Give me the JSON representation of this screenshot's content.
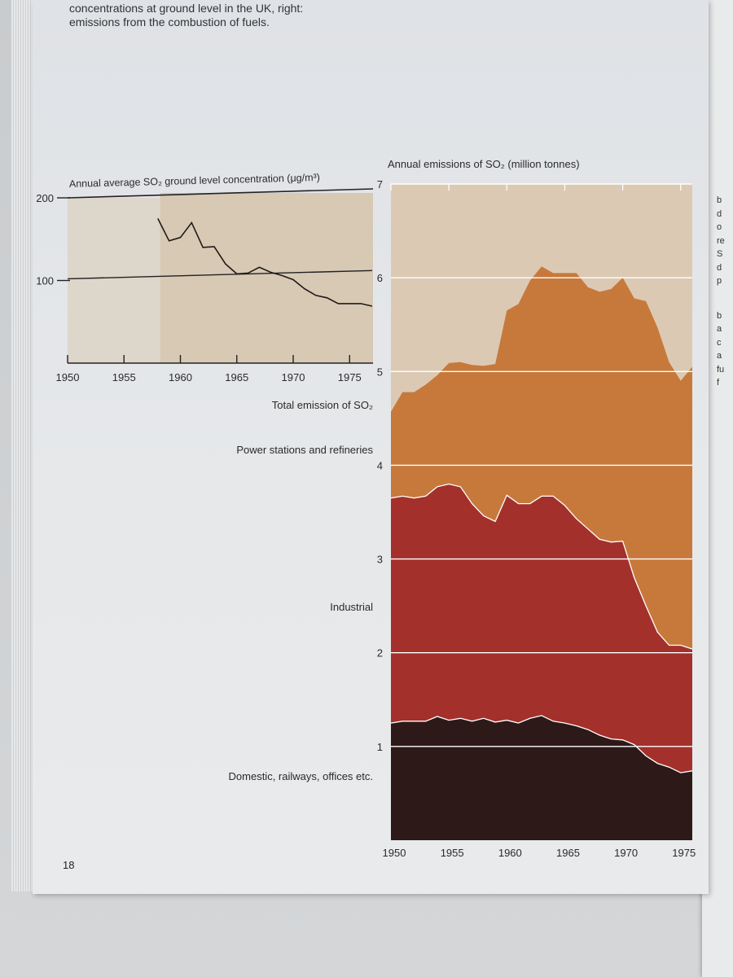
{
  "caption": {
    "line1": "concentrations at ground level in the UK, right:",
    "line2": "emissions from the combustion of fuels."
  },
  "page_number": "18",
  "edge_letters": [
    "b",
    "d",
    "o",
    "re",
    "S",
    "d",
    "p",
    "b",
    "a",
    "c",
    "a",
    "fu",
    "f"
  ],
  "colors": {
    "concentration_bg": "#d7c9b4",
    "concentration_bg_early": "#ddd6ca",
    "emissions_bg": "#dcc9b4",
    "power_stations": "#c7793b",
    "industrial": "#a3302b",
    "domestic": "#2d1a18",
    "gridline": "#ffffff"
  },
  "chart_data": [
    {
      "type": "line",
      "title": "Annual average SO₂ ground level concentration (μg/m³)",
      "xlabel": "",
      "ylabel": "",
      "xlim": [
        1950,
        1977
      ],
      "ylim": [
        0,
        200
      ],
      "xticks": [
        1950,
        1955,
        1960,
        1965,
        1970,
        1975
      ],
      "yticks": [
        100,
        200
      ],
      "series": [
        {
          "x": [
            1958,
            1959,
            1960,
            1961,
            1962,
            1963,
            1964,
            1965,
            1966,
            1967,
            1968,
            1969,
            1970,
            1971,
            1972,
            1973,
            1974,
            1975,
            1976,
            1977
          ],
          "values": [
            175,
            148,
            152,
            170,
            140,
            141,
            120,
            108,
            109,
            116,
            110,
            106,
            101,
            90,
            82,
            79,
            72,
            72,
            72,
            69
          ]
        }
      ],
      "reference_line": {
        "from": [
          1950,
          102
        ],
        "to": [
          1977,
          112
        ]
      }
    },
    {
      "type": "area",
      "title": "Annual emissions of SO₂ (million tonnes)",
      "xlabel": "",
      "ylabel": "",
      "xlim": [
        1950,
        1976
      ],
      "ylim": [
        0,
        7
      ],
      "xticks": [
        1950,
        1955,
        1960,
        1965,
        1970,
        1975
      ],
      "yticks": [
        1,
        2,
        3,
        4,
        5,
        6,
        7
      ],
      "stacked": true,
      "x": [
        1950,
        1951,
        1952,
        1953,
        1954,
        1955,
        1956,
        1957,
        1958,
        1959,
        1960,
        1961,
        1962,
        1963,
        1964,
        1965,
        1966,
        1967,
        1968,
        1969,
        1970,
        1971,
        1972,
        1973,
        1974,
        1975,
        1976
      ],
      "series": [
        {
          "name": "Domestic, railways, offices etc.",
          "values": [
            1.25,
            1.27,
            1.27,
            1.27,
            1.32,
            1.28,
            1.3,
            1.27,
            1.3,
            1.26,
            1.28,
            1.25,
            1.3,
            1.33,
            1.27,
            1.25,
            1.22,
            1.18,
            1.12,
            1.08,
            1.07,
            1.02,
            0.9,
            0.82,
            0.78,
            0.72,
            0.74
          ]
        },
        {
          "name": "Industrial",
          "values": [
            2.4,
            2.4,
            2.38,
            2.4,
            2.45,
            2.52,
            2.47,
            2.32,
            2.16,
            2.14,
            2.4,
            2.34,
            2.29,
            2.34,
            2.4,
            2.32,
            2.21,
            2.14,
            2.09,
            2.1,
            2.12,
            1.78,
            1.6,
            1.4,
            1.3,
            1.36,
            1.3
          ]
        },
        {
          "name": "Power stations and refineries",
          "values": [
            0.92,
            1.11,
            1.13,
            1.19,
            1.19,
            1.29,
            1.33,
            1.48,
            1.6,
            1.68,
            1.97,
            2.13,
            2.38,
            2.45,
            2.38,
            2.48,
            2.62,
            2.58,
            2.64,
            2.7,
            2.81,
            2.98,
            3.25,
            3.25,
            3.02,
            2.82,
            3.01
          ]
        }
      ],
      "total_label": "Total emission of SO₂"
    }
  ]
}
